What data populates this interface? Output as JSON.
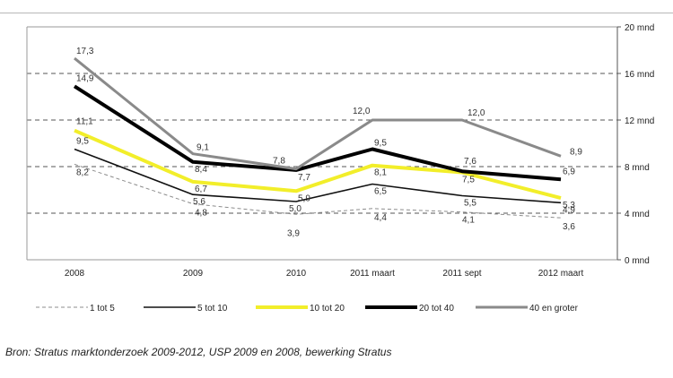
{
  "chart_data": {
    "type": "line",
    "categories": [
      "2008",
      "2009",
      "2010",
      "2011 maart",
      "2011 sept",
      "2012 maart"
    ],
    "y_unit": "mnd",
    "ylim": [
      0,
      20
    ],
    "yticks": [
      0,
      4,
      8,
      12,
      16,
      20
    ],
    "ytick_labels": [
      "0 mnd",
      "4 mnd",
      "8 mnd",
      "12 mnd",
      "16 mnd",
      "20 mnd"
    ],
    "grid": "horizontal dashed at 4, 8, 12, 16",
    "y_axis_side": "right",
    "legend_position": "bottom",
    "series": [
      {
        "name": "1 tot 5",
        "values": [
          8.2,
          4.8,
          3.9,
          4.4,
          4.1,
          3.6
        ],
        "labels": [
          "8,2",
          "4,8",
          "3,9",
          "4,4",
          "4,1",
          "3,6"
        ],
        "color": "#8c8c8c",
        "dashed": true
      },
      {
        "name": "5 tot 10",
        "values": [
          9.5,
          5.6,
          5.0,
          6.5,
          5.5,
          4.9
        ],
        "labels": [
          "9,5",
          "5,6",
          "5,0",
          "6,5",
          "5,5",
          "4,9"
        ],
        "color": "#111111",
        "dashed": false
      },
      {
        "name": "10 tot 20",
        "values": [
          11.1,
          6.7,
          5.9,
          8.1,
          7.5,
          5.3
        ],
        "labels": [
          "11,1",
          "6,7",
          "5,9",
          "8,1",
          "7,5",
          "5,3"
        ],
        "color": "#f2ee2a",
        "dashed": false
      },
      {
        "name": "20 tot 40",
        "values": [
          14.9,
          8.4,
          7.7,
          9.5,
          7.6,
          6.9
        ],
        "labels": [
          "14,9",
          "8,4",
          "7,7",
          "9,5",
          "7,6",
          "6,9"
        ],
        "color": "#000000",
        "dashed": false
      },
      {
        "name": "40 en groter",
        "values": [
          17.3,
          9.1,
          7.8,
          12.0,
          12.0,
          8.9
        ],
        "labels": [
          "17,3",
          "9,1",
          "7,8",
          "12,0",
          "12,0",
          "8,9"
        ],
        "color": "#8a8a8a",
        "dashed": false
      }
    ]
  },
  "source": "Bron: Stratus marktonderzoek 2009-2012, USP 2009 en 2008, bewerking Stratus"
}
